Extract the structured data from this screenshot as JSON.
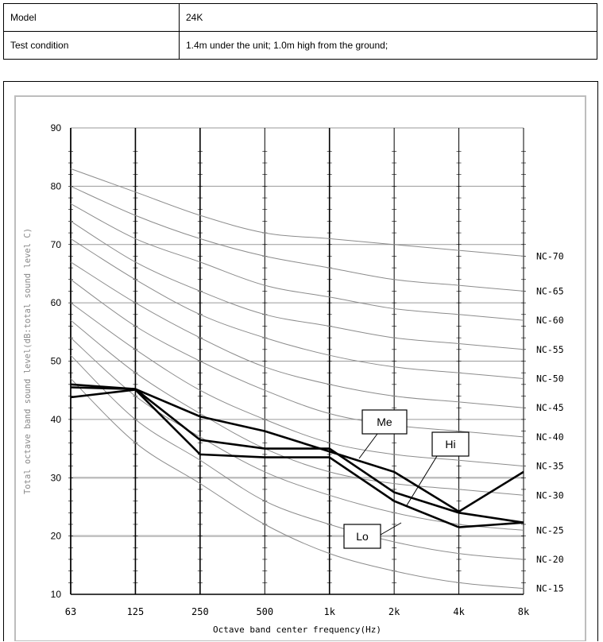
{
  "spec": {
    "rows": [
      {
        "label": "Model",
        "value": "24K"
      },
      {
        "label": "Test condition",
        "value": "1.4m under the unit; 1.0m high from the ground;"
      }
    ]
  },
  "chart_data": {
    "type": "line",
    "xlabel": "Octave band center frequency(Hz)",
    "ylabel": "Total octave band sound level(dB:total sound level C)",
    "categories": [
      "63",
      "125",
      "250",
      "500",
      "1k",
      "2k",
      "4k",
      "8k"
    ],
    "ylim": [
      10,
      90
    ],
    "yticks": [
      10,
      20,
      30,
      40,
      50,
      60,
      70,
      80,
      90
    ],
    "grid": true,
    "series": [
      {
        "name": "Hi",
        "values": [
          45.5,
          45.2,
          40.5,
          38,
          34.5,
          31,
          24.2,
          31
        ]
      },
      {
        "name": "Me",
        "values": [
          46,
          45.2,
          36.5,
          35,
          35,
          27.5,
          24,
          22.3
        ]
      },
      {
        "name": "Lo",
        "values": [
          43.8,
          45.1,
          34,
          33.5,
          33.5,
          26,
          21.5,
          22.3
        ]
      }
    ],
    "nc_curves": [
      {
        "name": "NC-15",
        "values": [
          47,
          36,
          29,
          22,
          17,
          14,
          12,
          11
        ]
      },
      {
        "name": "NC-20",
        "values": [
          51,
          40,
          33,
          26,
          22,
          19,
          17,
          16
        ]
      },
      {
        "name": "NC-25",
        "values": [
          54,
          44,
          37,
          31,
          27,
          24,
          22,
          21
        ]
      },
      {
        "name": "NC-30",
        "values": [
          57,
          48,
          41,
          35,
          31,
          29,
          28,
          27
        ]
      },
      {
        "name": "NC-35",
        "values": [
          60,
          52,
          45,
          40,
          36,
          34,
          33,
          32
        ]
      },
      {
        "name": "NC-40",
        "values": [
          64,
          56,
          50,
          45,
          41,
          39,
          38,
          37
        ]
      },
      {
        "name": "NC-45",
        "values": [
          67,
          60,
          54,
          49,
          46,
          44,
          43,
          42
        ]
      },
      {
        "name": "NC-50",
        "values": [
          71,
          64,
          58,
          54,
          51,
          49,
          48,
          47
        ]
      },
      {
        "name": "NC-55",
        "values": [
          74,
          67,
          62,
          58,
          56,
          54,
          53,
          52
        ]
      },
      {
        "name": "NC-60",
        "values": [
          77,
          71,
          67,
          63,
          61,
          59,
          58,
          57
        ]
      },
      {
        "name": "NC-65",
        "values": [
          80,
          75,
          71,
          68,
          66,
          64,
          63,
          62
        ]
      },
      {
        "name": "NC-70",
        "values": [
          83,
          79,
          75,
          72,
          71,
          70,
          69,
          68
        ]
      }
    ]
  }
}
